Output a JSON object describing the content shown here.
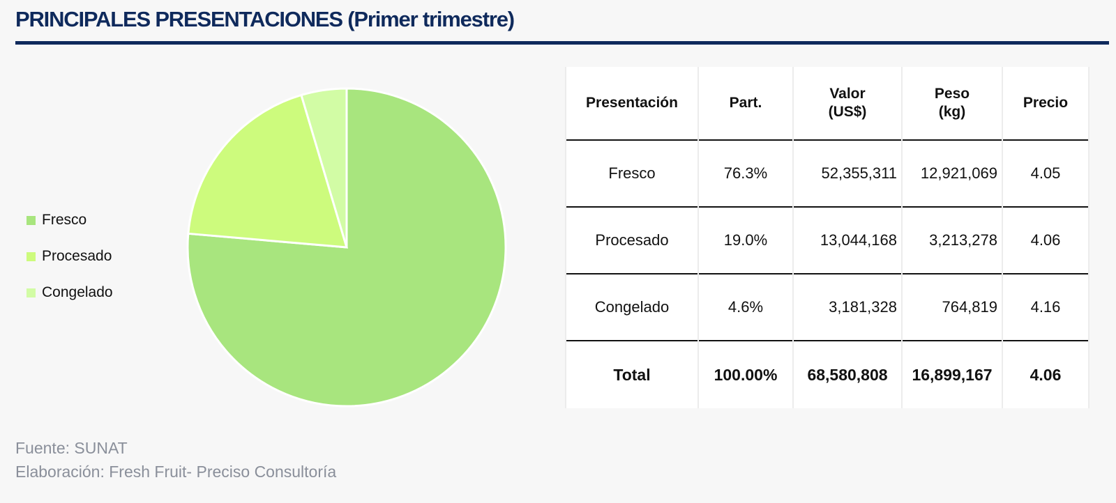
{
  "title": "PRINCIPALES PRESENTACIONES (Primer trimestre)",
  "chart_data": {
    "type": "pie",
    "categories": [
      "Fresco",
      "Procesado",
      "Congelado"
    ],
    "values": [
      76.3,
      19.0,
      4.6
    ],
    "colors": [
      "#a8e57e",
      "#cdfb7d",
      "#d2fca5"
    ],
    "legend_position": "left"
  },
  "table": {
    "headers": [
      "Presentación",
      "Part.",
      "Valor\n(US$)",
      "Peso\n(kg)",
      "Precio"
    ],
    "rows": [
      [
        "Fresco",
        "76.3%",
        "52,355,311",
        "12,921,069",
        "4.05"
      ],
      [
        "Procesado",
        "19.0%",
        "13,044,168",
        "3,213,278",
        "4.06"
      ],
      [
        "Congelado",
        "4.6%",
        "3,181,328",
        "764,819",
        "4.16"
      ]
    ],
    "total": [
      "Total",
      "100.00%",
      "68,580,808",
      "16,899,167",
      "4.06"
    ]
  },
  "source": "Fuente: SUNAT",
  "credit": "Elaboración: Fresh Fruit- Preciso Consultoría"
}
